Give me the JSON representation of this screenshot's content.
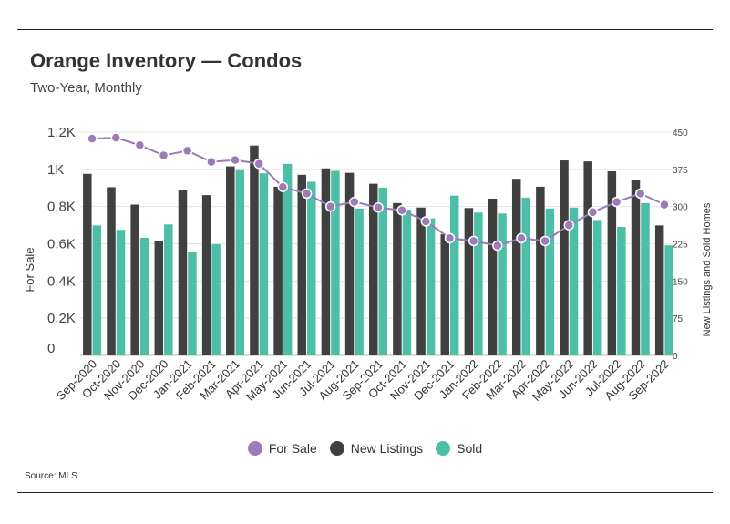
{
  "header": {
    "title": "Orange Inventory — Condos",
    "subtitle": "Two-Year, Monthly"
  },
  "footer": {
    "source": "Source:  MLS"
  },
  "chart_data": {
    "type": "bar",
    "categories": [
      "Sep-2020",
      "Oct-2020",
      "Nov-2020",
      "Dec-2020",
      "Jan-2021",
      "Feb-2021",
      "Mar-2021",
      "Apr-2021",
      "May-2021",
      "Jun-2021",
      "Jul-2021",
      "Aug-2021",
      "Sep-2021",
      "Oct-2021",
      "Nov-2021",
      "Dec-2021",
      "Jan-2022",
      "Feb-2022",
      "Mar-2022",
      "Apr-2022",
      "May-2022",
      "Jun-2022",
      "Jul-2022",
      "Aug-2022",
      "Sep-2022"
    ],
    "y_left": {
      "label": "For Sale",
      "ylim": [
        0,
        1200
      ],
      "ticks": [
        0,
        200,
        400,
        600,
        800,
        1000,
        1200
      ],
      "tick_labels": [
        "0",
        "0.2K",
        "0.4K",
        "0.6K",
        "0.8K",
        "1K",
        "1.2K"
      ]
    },
    "y_right": {
      "label": "New Listings and Sold Homes",
      "ylim": [
        0,
        450
      ],
      "ticks": [
        0,
        75,
        150,
        225,
        300,
        375,
        450
      ],
      "tick_labels": [
        "0",
        "75",
        "150",
        "225",
        "300",
        "375",
        "450"
      ]
    },
    "series": [
      {
        "name": "For Sale",
        "kind": "line",
        "axis": "left",
        "color": "#9b7cb8",
        "values": [
          1165,
          1170,
          1130,
          1075,
          1100,
          1040,
          1050,
          1030,
          905,
          870,
          800,
          825,
          795,
          780,
          720,
          630,
          615,
          590,
          630,
          615,
          700,
          770,
          825,
          870,
          810
        ]
      },
      {
        "name": "New Listings",
        "kind": "bar",
        "axis": "right",
        "color": "#404040",
        "values": [
          366,
          339,
          304,
          231,
          333,
          323,
          381,
          423,
          340,
          364,
          377,
          368,
          346,
          307,
          298,
          244,
          297,
          316,
          356,
          340,
          393,
          391,
          371,
          353,
          262
        ]
      },
      {
        "name": "Sold",
        "kind": "bar",
        "axis": "right",
        "color": "#4dbfa6",
        "values": [
          262,
          253,
          237,
          264,
          208,
          224,
          375,
          367,
          386,
          350,
          372,
          296,
          338,
          294,
          276,
          322,
          288,
          286,
          318,
          296,
          298,
          273,
          259,
          307,
          222
        ]
      }
    ],
    "legend": [
      "For Sale",
      "New Listings",
      "Sold"
    ],
    "legend_position": "bottom",
    "grid": true
  }
}
